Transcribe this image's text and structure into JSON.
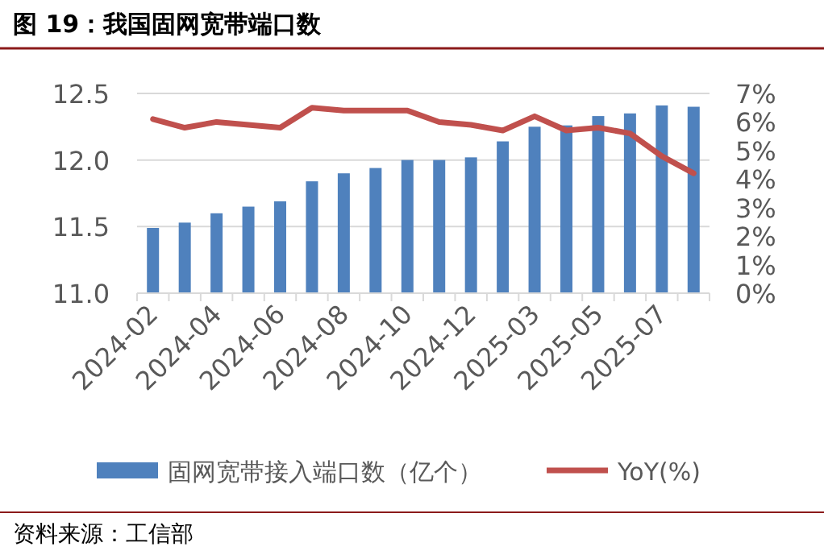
{
  "chart_data": {
    "type": "bar",
    "title": "图 19：我国固网宽带端口数",
    "categories": [
      "2024-02",
      null,
      "2024-04",
      null,
      "2024-06",
      null,
      "2024-08",
      null,
      "2024-10",
      null,
      "2024-12",
      null,
      "2025-03",
      null,
      "2025-05",
      null,
      "2025-07",
      null
    ],
    "series": [
      {
        "name": "固网宽带接入端口数（亿个）",
        "color": "#4f81bd",
        "values": [
          11.49,
          11.53,
          11.6,
          11.65,
          11.69,
          11.84,
          11.9,
          11.94,
          12.0,
          12.0,
          12.02,
          12.14,
          12.25,
          12.26,
          12.33,
          12.35,
          12.41,
          12.4
        ]
      },
      {
        "name": "YoY(%)",
        "type": "line",
        "axis": "y2",
        "color": "#c0504d",
        "values": [
          6.1,
          5.8,
          6.0,
          5.9,
          5.8,
          6.5,
          6.4,
          6.4,
          6.4,
          6.0,
          5.9,
          5.7,
          6.2,
          5.7,
          5.8,
          5.6,
          4.8,
          4.2
        ]
      }
    ],
    "ylim": [
      11.0,
      12.5
    ],
    "yticks": [
      {
        "value": 11.0,
        "label": "11.0"
      },
      {
        "value": 11.5,
        "label": "11.5"
      },
      {
        "value": 12.0,
        "label": "12.0"
      },
      {
        "value": 12.5,
        "label": "12.5"
      }
    ],
    "y2lim": [
      0,
      7
    ],
    "y2ticks": [
      {
        "value": 0,
        "label": "0%"
      },
      {
        "value": 1,
        "label": "1%"
      },
      {
        "value": 2,
        "label": "2%"
      },
      {
        "value": 3,
        "label": "3%"
      },
      {
        "value": 4,
        "label": "4%"
      },
      {
        "value": 5,
        "label": "5%"
      },
      {
        "value": 6,
        "label": "6%"
      },
      {
        "value": 7,
        "label": "7%"
      }
    ],
    "grid": "y",
    "legend": "bottom",
    "marker": "none",
    "line_style": "solid",
    "annotations": [
      "资料来源：工信部"
    ]
  }
}
